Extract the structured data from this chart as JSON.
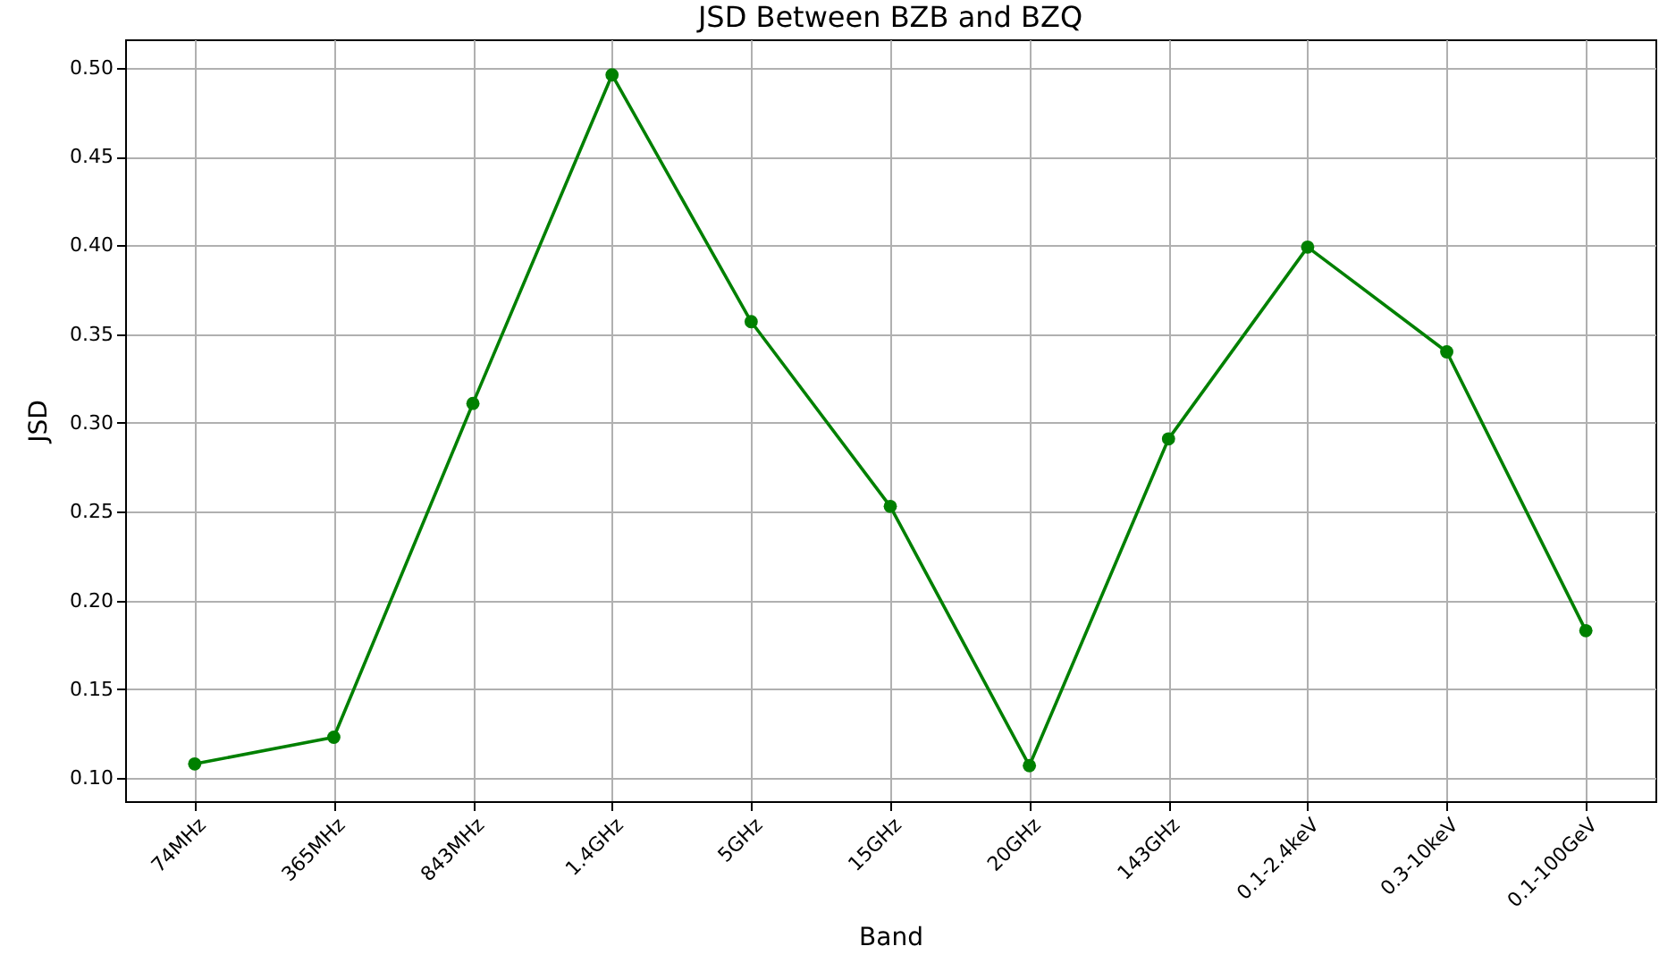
{
  "chart_data": {
    "type": "line",
    "title": "JSD Between BZB and BZQ",
    "xlabel": "Band",
    "ylabel": "JSD",
    "categories": [
      "74MHz",
      "365MHz",
      "843MHz",
      "1.4GHz",
      "5GHz",
      "15GHz",
      "20GHz",
      "143GHz",
      "0.1-2.4keV",
      "0.3-10keV",
      "0.1-100GeV"
    ],
    "series": [
      {
        "color": "#008000",
        "values": [
          0.108,
          0.123,
          0.311,
          0.496,
          0.357,
          0.253,
          0.107,
          0.291,
          0.399,
          0.34,
          0.183
        ]
      }
    ],
    "ylim": [
      0.087,
      0.516
    ],
    "yticks": [
      {
        "value": 0.1,
        "label": "0.10"
      },
      {
        "value": 0.15,
        "label": "0.15"
      },
      {
        "value": 0.2,
        "label": "0.20"
      },
      {
        "value": 0.25,
        "label": "0.25"
      },
      {
        "value": 0.3,
        "label": "0.30"
      },
      {
        "value": 0.35,
        "label": "0.35"
      },
      {
        "value": 0.4,
        "label": "0.40"
      },
      {
        "value": 0.45,
        "label": "0.45"
      },
      {
        "value": 0.5,
        "label": "0.50"
      }
    ],
    "grid": true,
    "marker": "circle",
    "line_style": "solid"
  }
}
